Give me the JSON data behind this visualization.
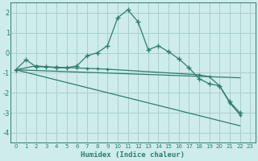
{
  "xlabel": "Humidex (Indice chaleur)",
  "background_color": "#ceecea",
  "line_color": "#2e7d6e",
  "grid_color": "#aacfcc",
  "xlim": [
    -0.5,
    23.5
  ],
  "ylim": [
    -4.5,
    2.5
  ],
  "yticks": [
    -4,
    -3,
    -2,
    -1,
    0,
    1,
    2
  ],
  "xticks": [
    0,
    1,
    2,
    3,
    4,
    5,
    6,
    7,
    8,
    9,
    10,
    11,
    12,
    13,
    14,
    15,
    16,
    17,
    18,
    19,
    20,
    21,
    22,
    23
  ],
  "series": [
    {
      "x": [
        0,
        1,
        2,
        3,
        4,
        5,
        6,
        7,
        8,
        9,
        10,
        11,
        12,
        13,
        14,
        15,
        16,
        17,
        18,
        19,
        20,
        21,
        22
      ],
      "y": [
        -0.85,
        -0.35,
        -0.7,
        -0.7,
        -0.75,
        -0.75,
        -0.65,
        -0.15,
        0.0,
        0.35,
        1.75,
        2.15,
        1.55,
        0.15,
        0.35,
        0.05,
        -0.3,
        -0.75,
        -1.3,
        -1.55,
        -1.65,
        -2.45,
        -3.0
      ]
    },
    {
      "x": [
        0,
        2,
        3,
        4,
        5,
        6,
        7,
        8,
        9,
        18,
        19,
        20,
        21,
        22
      ],
      "y": [
        -0.85,
        -0.65,
        -0.7,
        -0.72,
        -0.74,
        -0.76,
        -0.78,
        -0.8,
        -0.82,
        -1.1,
        -1.2,
        -1.65,
        -2.5,
        -3.1
      ]
    },
    {
      "x": [
        0,
        22
      ],
      "y": [
        -0.85,
        -1.25
      ]
    },
    {
      "x": [
        0,
        22
      ],
      "y": [
        -0.85,
        -3.65
      ]
    }
  ]
}
